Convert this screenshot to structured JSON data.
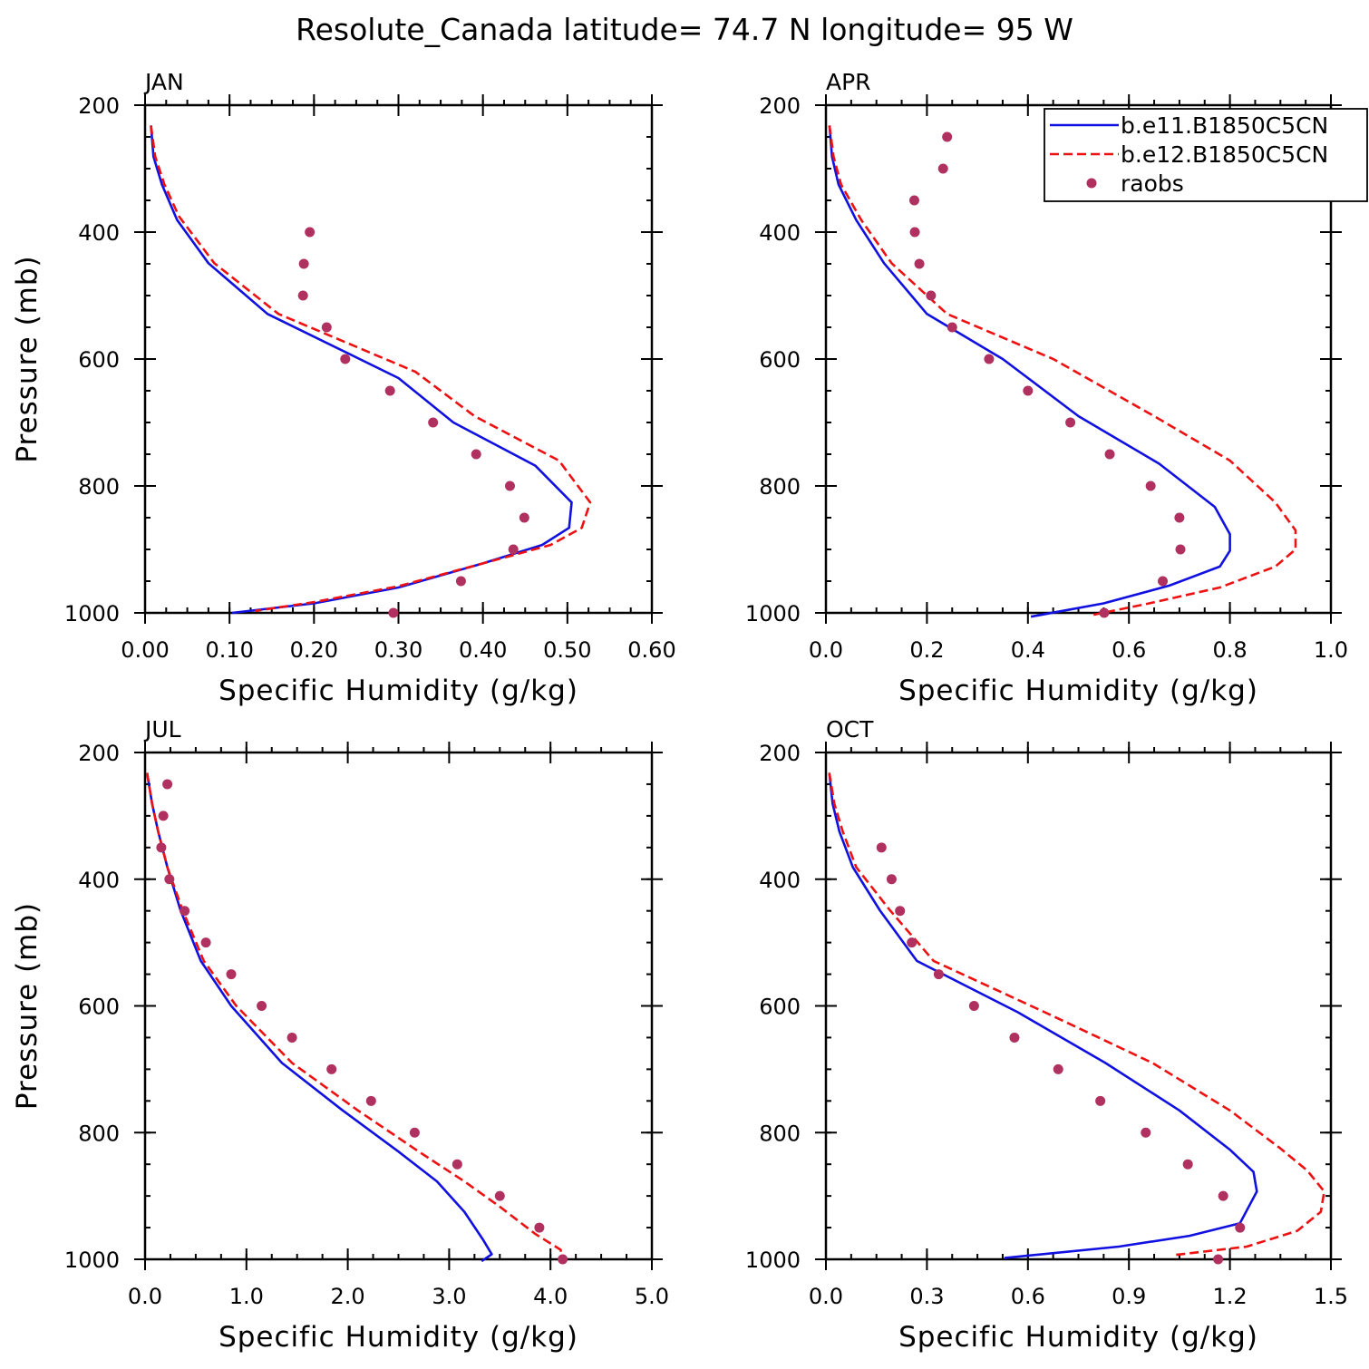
{
  "page_title": "Resolute_Canada  latitude= 74.7 N longitude= 95 W",
  "colors": {
    "b.e11.B1850C5CN": "#1010e0",
    "b.e12.B1850C5CN": "#ee1111",
    "raobs": "#b03060"
  },
  "legend": {
    "placement": "top-right of APR panel",
    "entries": [
      {
        "name": "b.e11.B1850C5CN",
        "style": "solid-line"
      },
      {
        "name": "b.e12.B1850C5CN",
        "style": "dashed-line"
      },
      {
        "name": "raobs",
        "style": "dot"
      }
    ]
  },
  "chart_data": [
    {
      "type": "line",
      "title": "JAN",
      "xlabel": "Specific Humidity (g/kg)",
      "ylabel": "Pressure (mb)",
      "xlim": [
        0,
        0.6
      ],
      "ylim": [
        200,
        1000
      ],
      "y_inverted": true,
      "xticks": [
        0,
        0.1,
        0.2,
        0.3,
        0.4,
        0.5,
        0.6
      ],
      "xtick_labels": [
        "0.00",
        "0.10",
        "0.20",
        "0.30",
        "0.40",
        "0.50",
        "0.60"
      ],
      "xminor_step": 0.025,
      "yticks": [
        200,
        400,
        600,
        800,
        1000
      ],
      "ytick_labels": [
        "200",
        "400",
        "600",
        "800",
        "1000"
      ],
      "yminor_step": 50,
      "series": [
        {
          "name": "b.e11.B1850C5CN",
          "style": "solid",
          "x": [
            0.007,
            0.01,
            0.02,
            0.038,
            0.075,
            0.145,
            0.3,
            0.365,
            0.462,
            0.505,
            0.502,
            0.47,
            0.4,
            0.3,
            0.2,
            0.103
          ],
          "y": [
            232,
            281,
            325,
            381,
            449,
            529,
            630,
            700,
            768,
            826,
            866,
            893,
            922,
            960,
            985,
            1000
          ]
        },
        {
          "name": "b.e12.B1850C5CN",
          "style": "dashed",
          "x": [
            0.007,
            0.012,
            0.023,
            0.04,
            0.082,
            0.158,
            0.32,
            0.39,
            0.49,
            0.527,
            0.517,
            0.48,
            0.4,
            0.3,
            0.2,
            0.13
          ],
          "y": [
            232,
            281,
            325,
            375,
            449,
            529,
            620,
            690,
            760,
            826,
            866,
            893,
            922,
            958,
            983,
            997
          ]
        },
        {
          "name": "raobs",
          "style": "dots",
          "x": [
            0.195,
            0.188,
            0.187,
            0.215,
            0.237,
            0.29,
            0.341,
            0.392,
            0.432,
            0.449,
            0.436,
            0.374,
            0.294
          ],
          "y": [
            400,
            450,
            500,
            550,
            600,
            650,
            700,
            750,
            800,
            850,
            900,
            950,
            1000
          ]
        }
      ]
    },
    {
      "type": "line",
      "title": "APR",
      "xlabel": "Specific Humidity (g/kg)",
      "ylabel": "",
      "xlim": [
        0,
        1.0
      ],
      "ylim": [
        200,
        1000
      ],
      "y_inverted": true,
      "xticks": [
        0,
        0.2,
        0.4,
        0.6,
        0.8,
        1.0
      ],
      "xtick_labels": [
        "0.0",
        "0.2",
        "0.4",
        "0.6",
        "0.8",
        "1.0"
      ],
      "xminor_step": 0.05,
      "yticks": [
        200,
        400,
        600,
        800,
        1000
      ],
      "ytick_labels": [
        "200",
        "400",
        "600",
        "800",
        "1000"
      ],
      "yminor_step": 50,
      "series": [
        {
          "name": "b.e11.B1850C5CN",
          "style": "solid",
          "x": [
            0.007,
            0.012,
            0.025,
            0.06,
            0.115,
            0.2,
            0.35,
            0.5,
            0.66,
            0.77,
            0.8,
            0.8,
            0.78,
            0.68,
            0.55,
            0.406
          ],
          "y": [
            232,
            281,
            325,
            381,
            449,
            529,
            600,
            690,
            765,
            833,
            876,
            902,
            927,
            957,
            985,
            1006
          ]
        },
        {
          "name": "b.e12.B1850C5CN",
          "style": "dashed",
          "x": [
            0.007,
            0.015,
            0.03,
            0.07,
            0.13,
            0.24,
            0.45,
            0.65,
            0.8,
            0.89,
            0.93,
            0.93,
            0.89,
            0.78,
            0.64,
            0.53
          ],
          "y": [
            232,
            281,
            325,
            381,
            449,
            529,
            600,
            690,
            760,
            826,
            870,
            900,
            927,
            960,
            985,
            1003
          ]
        },
        {
          "name": "raobs",
          "style": "dots",
          "x": [
            0.24,
            0.232,
            0.175,
            0.176,
            0.185,
            0.208,
            0.25,
            0.323,
            0.4,
            0.484,
            0.562,
            0.643,
            0.7,
            0.702,
            0.667,
            0.551
          ],
          "y": [
            250,
            300,
            350,
            400,
            450,
            500,
            550,
            600,
            650,
            700,
            750,
            800,
            850,
            900,
            950,
            1000
          ]
        }
      ]
    },
    {
      "type": "line",
      "title": "JUL",
      "xlabel": "Specific Humidity (g/kg)",
      "ylabel": "Pressure (mb)",
      "xlim": [
        0,
        5.0
      ],
      "ylim": [
        200,
        1000
      ],
      "y_inverted": true,
      "xticks": [
        0,
        1,
        2,
        3,
        4,
        5
      ],
      "xtick_labels": [
        "0.0",
        "1.0",
        "2.0",
        "3.0",
        "4.0",
        "5.0"
      ],
      "xminor_step": 0.25,
      "yticks": [
        200,
        400,
        600,
        800,
        1000
      ],
      "ytick_labels": [
        "200",
        "400",
        "600",
        "800",
        "1000"
      ],
      "yminor_step": 50,
      "series": [
        {
          "name": "b.e11.B1850C5CN",
          "style": "solid",
          "x": [
            0.02,
            0.07,
            0.13,
            0.22,
            0.35,
            0.55,
            0.85,
            1.35,
            1.95,
            2.5,
            2.88,
            3.15,
            3.33,
            3.42,
            3.32
          ],
          "y": [
            232,
            281,
            325,
            381,
            449,
            529,
            600,
            690,
            765,
            830,
            877,
            925,
            968,
            992,
            1003
          ]
        },
        {
          "name": "b.e12.B1850C5CN",
          "style": "dashed",
          "x": [
            0.02,
            0.07,
            0.13,
            0.22,
            0.37,
            0.58,
            0.9,
            1.45,
            2.1,
            2.7,
            3.15,
            3.5,
            3.85,
            4.1,
            4.12
          ],
          "y": [
            232,
            281,
            325,
            381,
            449,
            529,
            600,
            690,
            765,
            830,
            877,
            917,
            960,
            985,
            1000
          ]
        },
        {
          "name": "raobs",
          "style": "dots",
          "x": [
            0.22,
            0.18,
            0.16,
            0.24,
            0.39,
            0.6,
            0.85,
            1.15,
            1.45,
            1.84,
            2.23,
            2.66,
            3.08,
            3.5,
            3.89,
            4.12
          ],
          "y": [
            250,
            300,
            350,
            400,
            450,
            500,
            550,
            600,
            650,
            700,
            750,
            800,
            850,
            900,
            950,
            1000
          ]
        }
      ]
    },
    {
      "type": "line",
      "title": "OCT",
      "xlabel": "Specific Humidity (g/kg)",
      "ylabel": "",
      "xlim": [
        0,
        1.5
      ],
      "ylim": [
        200,
        1000
      ],
      "y_inverted": true,
      "xticks": [
        0,
        0.3,
        0.6,
        0.9,
        1.2,
        1.5
      ],
      "xtick_labels": [
        "0.0",
        "0.3",
        "0.6",
        "0.9",
        "1.2",
        "1.5"
      ],
      "xminor_step": 0.075,
      "yticks": [
        200,
        400,
        600,
        800,
        1000
      ],
      "ytick_labels": [
        "200",
        "400",
        "600",
        "800",
        "1000"
      ],
      "yminor_step": 50,
      "series": [
        {
          "name": "b.e11.B1850C5CN",
          "style": "solid",
          "x": [
            0.01,
            0.02,
            0.04,
            0.08,
            0.16,
            0.27,
            0.57,
            0.83,
            1.05,
            1.2,
            1.27,
            1.28,
            1.23,
            1.08,
            0.87,
            0.53
          ],
          "y": [
            232,
            281,
            325,
            381,
            449,
            529,
            610,
            690,
            765,
            827,
            862,
            893,
            943,
            963,
            980,
            998
          ]
        },
        {
          "name": "b.e12.B1850C5CN",
          "style": "dashed",
          "x": [
            0.01,
            0.025,
            0.05,
            0.09,
            0.19,
            0.32,
            0.65,
            0.97,
            1.2,
            1.35,
            1.43,
            1.48,
            1.47,
            1.4,
            1.25,
            1.04
          ],
          "y": [
            232,
            281,
            325,
            381,
            449,
            529,
            610,
            690,
            765,
            825,
            860,
            893,
            925,
            955,
            980,
            993
          ]
        },
        {
          "name": "raobs",
          "style": "dots",
          "x": [
            0.165,
            0.195,
            0.22,
            0.255,
            0.335,
            0.44,
            0.56,
            0.69,
            0.815,
            0.95,
            1.075,
            1.18,
            1.23,
            1.165
          ],
          "y": [
            350,
            400,
            450,
            500,
            550,
            600,
            650,
            700,
            750,
            800,
            850,
            900,
            950,
            1000
          ]
        }
      ]
    }
  ]
}
